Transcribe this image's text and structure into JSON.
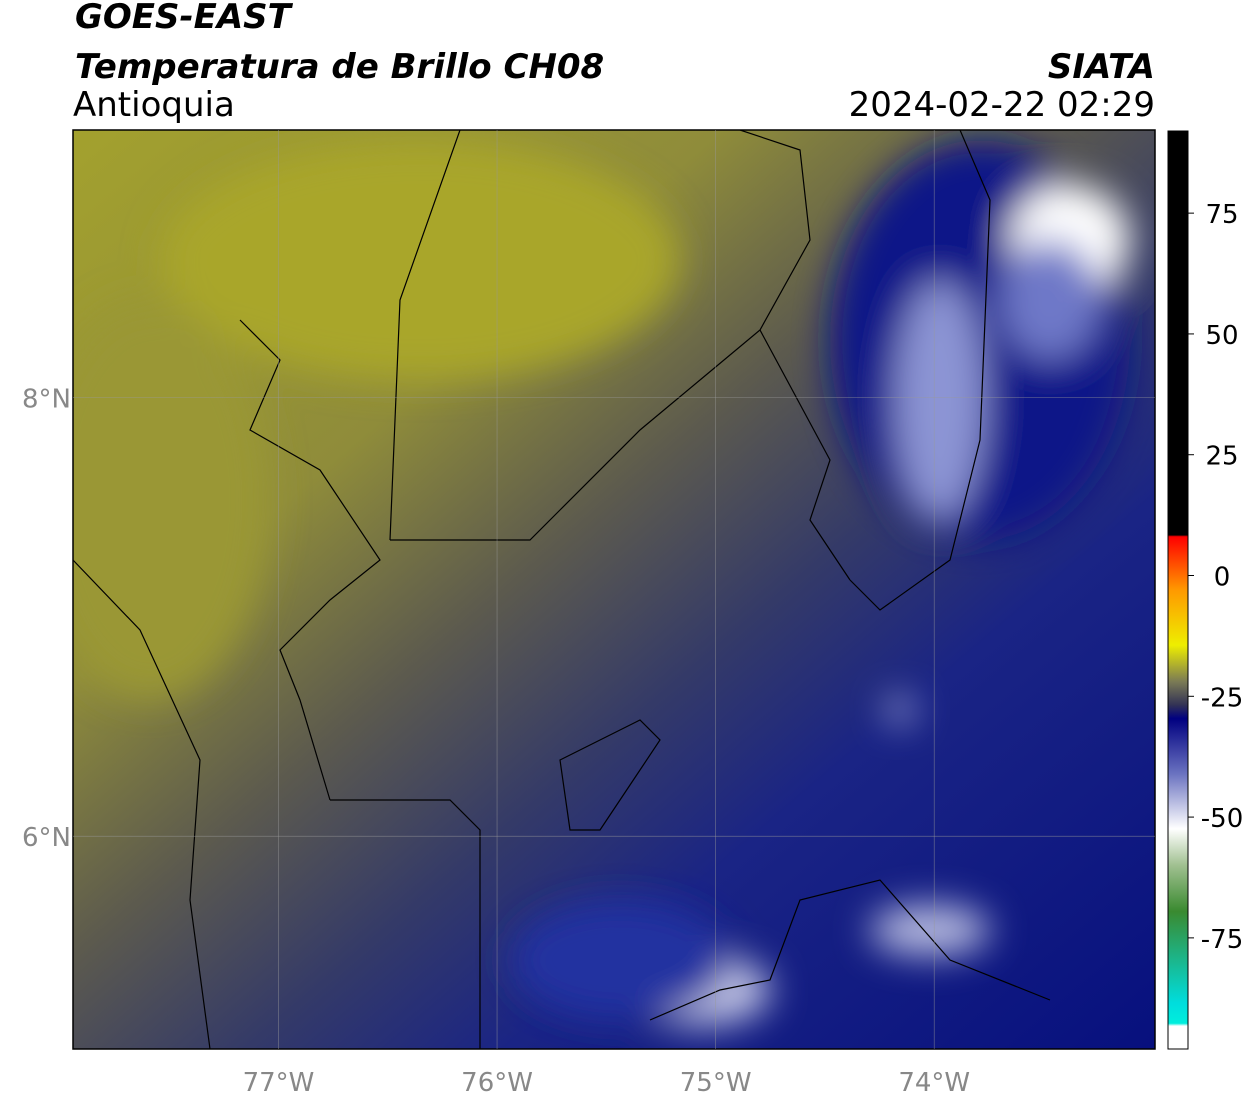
{
  "header": {
    "title": "GOES-EAST",
    "subtitle": "Temperatura de Brillo CH08",
    "region": "Antioquia",
    "source": "SIATA",
    "datetime": "2024-02-22 02:29"
  },
  "map": {
    "xlim": [
      -77.94,
      -72.99
    ],
    "ylim": [
      5.03,
      9.22
    ],
    "xticks": [
      {
        "value": -77,
        "label": "77°W"
      },
      {
        "value": -76,
        "label": "76°W"
      },
      {
        "value": -75,
        "label": "75°W"
      },
      {
        "value": -74,
        "label": "74°W"
      }
    ],
    "yticks": [
      {
        "value": 8,
        "label": "8°N"
      },
      {
        "value": 6,
        "label": "6°N"
      }
    ],
    "grid": true
  },
  "colorbar": {
    "lim": [
      -98,
      92
    ],
    "ticks": [
      75,
      50,
      25,
      0,
      -25,
      -50,
      -75
    ]
  }
}
